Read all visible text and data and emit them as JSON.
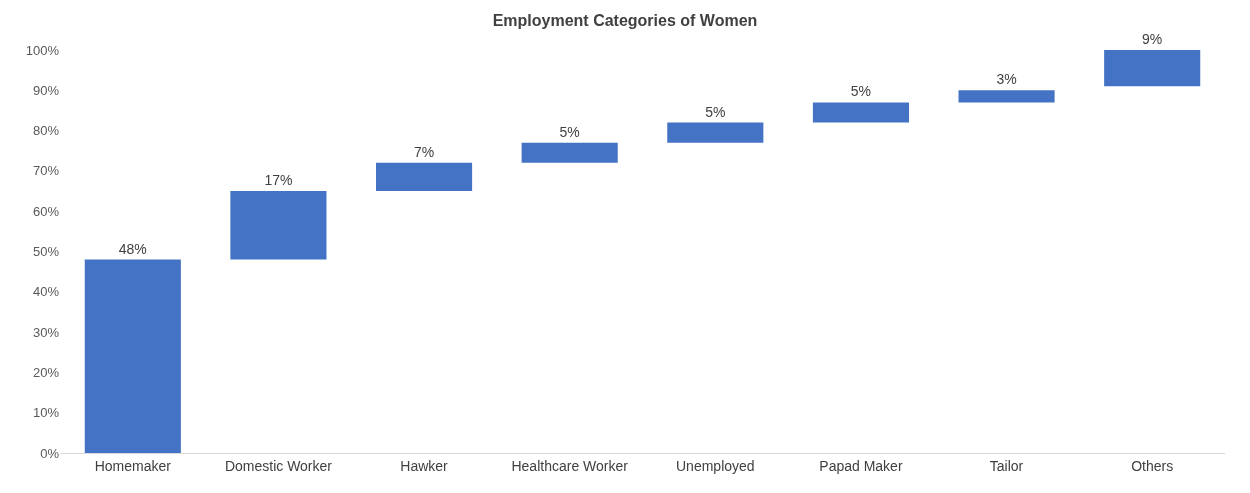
{
  "chart_data": {
    "type": "bar",
    "title": "Employment Categories of Women",
    "categories": [
      "Homemaker",
      "Domestic Worker",
      "Hawker",
      "Healthcare Worker",
      "Unemployed",
      "Papad Maker",
      "Tailor",
      "Others"
    ],
    "values": [
      48,
      17,
      7,
      5,
      5,
      5,
      3,
      9
    ],
    "base": [
      0,
      48,
      65,
      72,
      77,
      82,
      87,
      91
    ],
    "value_labels": [
      "48%",
      "17%",
      "7%",
      "5%",
      "5%",
      "5%",
      "3%",
      "9%"
    ],
    "color": "#4472c4",
    "ylim": [
      0,
      100
    ],
    "yticks": [
      {
        "value": 0,
        "label": "0%"
      },
      {
        "value": 10,
        "label": "10%"
      },
      {
        "value": 20,
        "label": "20%"
      },
      {
        "value": 30,
        "label": "30%"
      },
      {
        "value": 40,
        "label": "40%"
      },
      {
        "value": 50,
        "label": "50%"
      },
      {
        "value": 60,
        "label": "60%"
      },
      {
        "value": 70,
        "label": "70%"
      },
      {
        "value": 80,
        "label": "80%"
      },
      {
        "value": 90,
        "label": "90%"
      },
      {
        "value": 100,
        "label": "100%"
      }
    ],
    "legend": false
  }
}
